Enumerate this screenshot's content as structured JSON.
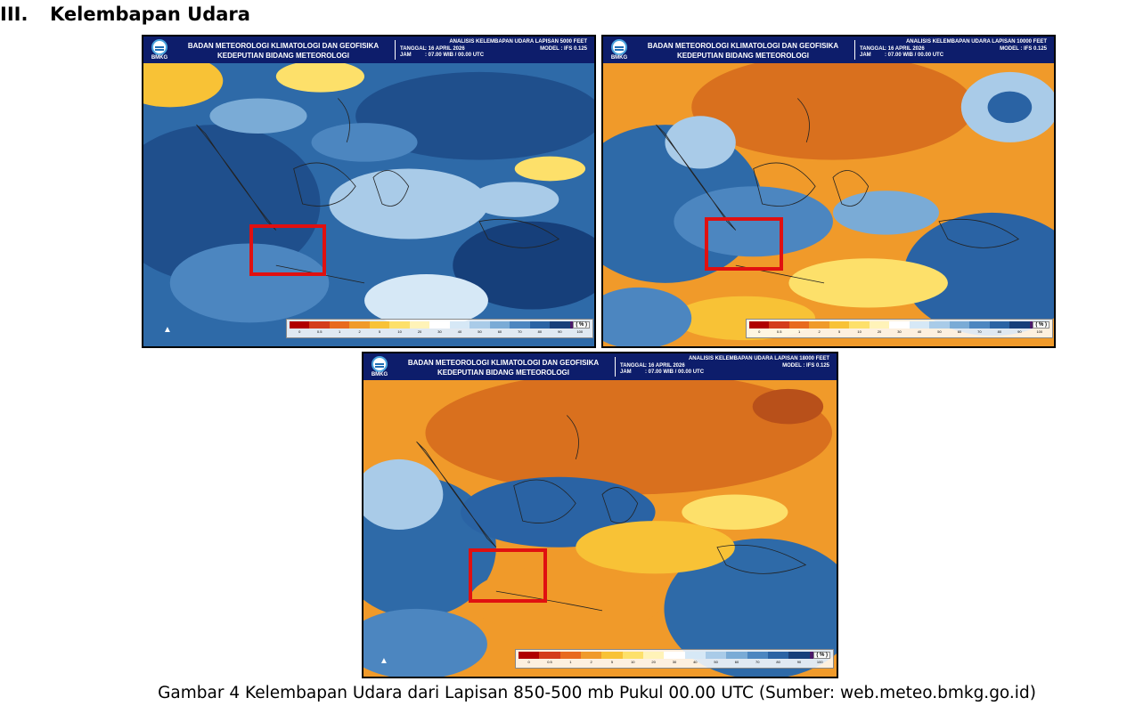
{
  "section": {
    "number": "III.",
    "title": "Kelembapan Udara"
  },
  "legend_values": [
    "0",
    "0.5",
    "1",
    "2",
    "5",
    "10",
    "20",
    "30",
    "40",
    "50",
    "60",
    "70",
    "80",
    "90",
    "100"
  ],
  "legend_colors": [
    "#b00000",
    "#d43c1a",
    "#e86a1e",
    "#f09a2a",
    "#f8c236",
    "#fde06a",
    "#fff3b8",
    "#ffffff",
    "#d6e8f6",
    "#a9cbe8",
    "#7aabd6",
    "#4c86c0",
    "#2a63a4",
    "#163f7a",
    "#4b1a6b"
  ],
  "maps": [
    {
      "agency_line1": "BADAN METEOROLOGI KLIMATOLOGI DAN GEOFISIKA",
      "agency_line2": "KEDEPUTIAN BIDANG METEOROLOGI",
      "logo_text": "BMKG",
      "analysis": "ANALISIS KELEMBAPAN UDARA LAPISAN 5000 FEET",
      "date_label": "TANGGAL",
      "date_value": ": 16 APRIL 2026",
      "model": "MODEL : IFS 0.125",
      "time_label": "JAM",
      "time_value": ": 07.00 WIB / 00.00 UTC",
      "unit": "( % )"
    },
    {
      "agency_line1": "BADAN METEOROLOGI KLIMATOLOGI DAN GEOFISIKA",
      "agency_line2": "KEDEPUTIAN BIDANG METEOROLOGI",
      "logo_text": "BMKG",
      "analysis": "ANALISIS KELEMBAPAN UDARA LAPISAN 10000 FEET",
      "date_label": "TANGGAL",
      "date_value": ": 16 APRIL 2026",
      "model": "MODEL : IFS 0.125",
      "time_label": "JAM",
      "time_value": ": 07.00 WIB / 00.00 UTC",
      "unit": "( % )"
    },
    {
      "agency_line1": "BADAN METEOROLOGI KLIMATOLOGI DAN GEOFISIKA",
      "agency_line2": "KEDEPUTIAN BIDANG METEOROLOGI",
      "logo_text": "BMKG",
      "analysis": "ANALISIS KELEMBAPAN UDARA LAPISAN 18000 FEET",
      "date_label": "TANGGAL",
      "date_value": ": 16 APRIL 2026",
      "model": "MODEL : IFS 0.125",
      "time_label": "JAM",
      "time_value": ": 07.00 WIB / 00.00 UTC",
      "unit": "( % )"
    }
  ],
  "caption": "Gambar 4 Kelembapan Udara dari Lapisan 850-500 mb Pukul 00.00 UTC (Sumber: web.meteo.bmkg.go.id)"
}
